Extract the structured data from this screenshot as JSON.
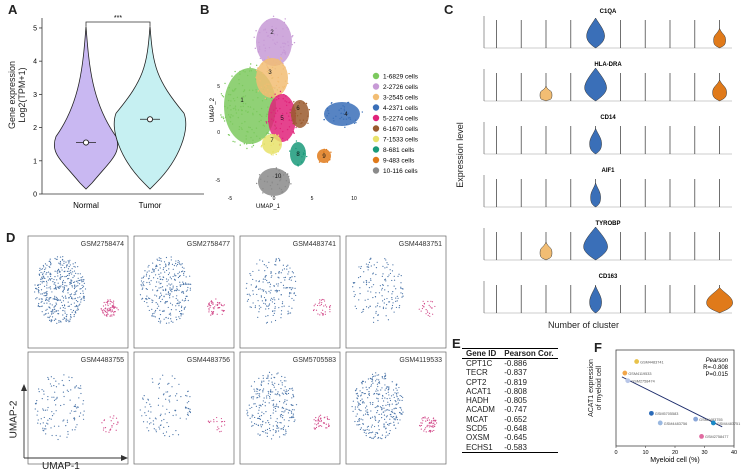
{
  "panels": {
    "A": {
      "label": "A",
      "ylabel_line1": "Gene expression",
      "ylabel_line2": "Log2(TPM+1)",
      "yticks": [
        "0",
        "1",
        "2",
        "3",
        "4",
        "5"
      ],
      "groups": [
        "Normal",
        "Tumor"
      ],
      "significance": "***",
      "chart_data": {
        "type": "violin",
        "categories": [
          "Normal",
          "Tumor"
        ],
        "medians": [
          1.55,
          2.25
        ],
        "ylim": [
          0,
          5.3
        ],
        "series": [
          {
            "name": "Normal",
            "color": "#c9b8f2",
            "min": 0.15,
            "max": 5.05
          },
          {
            "name": "Tumor",
            "color": "#c6f0f2",
            "min": 0.15,
            "max": 5.05
          }
        ]
      }
    },
    "B": {
      "label": "B",
      "xlabel": "UMAP_1",
      "ylabel": "UMAP_2",
      "xticks": [
        "-5",
        "0",
        "5",
        "10"
      ],
      "yticks": [
        "-5",
        "0",
        "5"
      ],
      "legend": [
        {
          "label": "1-6829 cells",
          "color": "#7cc95e"
        },
        {
          "label": "2-2726 cells",
          "color": "#c79ad6"
        },
        {
          "label": "3-2545 cells",
          "color": "#f2bd73"
        },
        {
          "label": "4-2371 cells",
          "color": "#3a6fb8"
        },
        {
          "label": "5-2274 cells",
          "color": "#e0227a"
        },
        {
          "label": "6-1670 cells",
          "color": "#9a5a2e"
        },
        {
          "label": "7-1533 cells",
          "color": "#e8e26a"
        },
        {
          "label": "8-681 cells",
          "color": "#1a9a7a"
        },
        {
          "label": "9-483 cells",
          "color": "#e07a1a"
        },
        {
          "label": "10-116 cells",
          "color": "#8a8a8a"
        }
      ],
      "cluster_numbers": [
        "1",
        "2",
        "3",
        "4",
        "5",
        "6",
        "7",
        "8",
        "9",
        "10"
      ]
    },
    "C": {
      "label": "C",
      "ylabel": "Expression level",
      "xlabel": "Number of cluster",
      "genes": [
        "C1QA",
        "HLA-DRA",
        "CD14",
        "AIF1",
        "TYROBP",
        "CD163"
      ]
    },
    "D": {
      "label": "D",
      "xlabel": "UMAP-1",
      "ylabel": "UMAP-2",
      "samples": [
        "GSM2758474",
        "GSM2758477",
        "GSM4483741",
        "GSM4483751",
        "GSM4483755",
        "GSM4483756",
        "GSM5705583",
        "GSM4119533"
      ]
    },
    "E": {
      "label": "E",
      "headers": [
        "Gene ID",
        "Pearson Cor."
      ],
      "rows": [
        [
          "CPT1C",
          "-0.886"
        ],
        [
          "TECR",
          "-0.837"
        ],
        [
          "CPT2",
          "-0.819"
        ],
        [
          "ACAT1",
          "-0.808"
        ],
        [
          "HADH",
          "-0.805"
        ],
        [
          "ACADM",
          "-0.747"
        ],
        [
          "MCAT",
          "-0.652"
        ],
        [
          "SCD5",
          "-0.648"
        ],
        [
          "OXSM",
          "-0.645"
        ],
        [
          "ECHS1",
          "-0.583"
        ]
      ]
    },
    "F": {
      "label": "F",
      "xlabel": "Myeloid cell (%)",
      "ylabel_line1": "ACAT1 expression",
      "ylabel_line2": "of myeloid cell",
      "xticks": [
        "0",
        "10",
        "20",
        "30",
        "40"
      ],
      "stats_line1": "Pearson",
      "stats_line2": "R=-0.808",
      "stats_line3": "P=0.015",
      "chart_data": {
        "type": "scatter",
        "xlim": [
          0,
          40
        ],
        "points": [
          {
            "x": 7,
            "y": 0.88,
            "label": "GSM4483741",
            "color": "#e8c24a"
          },
          {
            "x": 3,
            "y": 0.76,
            "label": "GSM4119533",
            "color": "#f2a64a"
          },
          {
            "x": 4,
            "y": 0.68,
            "label": "GSM2758474",
            "color": "#b8c6e8"
          },
          {
            "x": 12,
            "y": 0.34,
            "label": "GSM5705583",
            "color": "#2a6ab8"
          },
          {
            "x": 15,
            "y": 0.24,
            "label": "GSM4483756",
            "color": "#9ab8e0"
          },
          {
            "x": 27,
            "y": 0.28,
            "label": "GSM4483755",
            "color": "#8aa6d8"
          },
          {
            "x": 33,
            "y": 0.24,
            "label": "GSM4483751",
            "color": "#1a8ac8"
          },
          {
            "x": 29,
            "y": 0.1,
            "label": "GSM2758477",
            "color": "#e06aa0"
          }
        ]
      }
    }
  }
}
